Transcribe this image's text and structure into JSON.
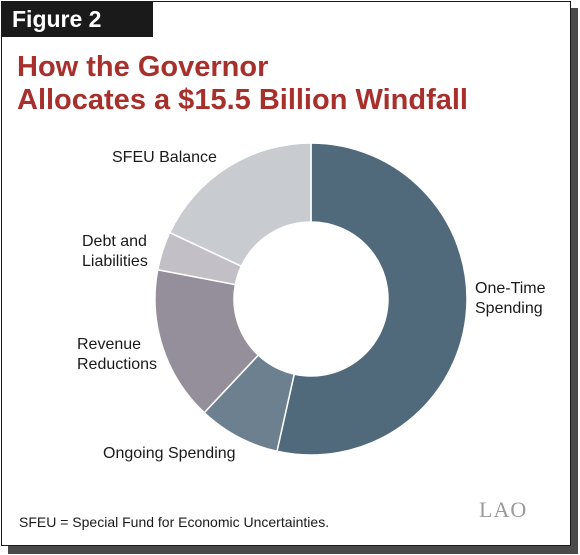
{
  "figure_label": "Figure 2",
  "title_line1": "How the Governor",
  "title_line2": "Allocates a $15.5 Billion Windfall",
  "footnote": "SFEU = Special Fund for Economic Uncertainties.",
  "logo_text": "LAO",
  "chart_data": {
    "type": "pie",
    "subtype": "donut",
    "title": "How the Governor Allocates a $15.5 Billion Windfall",
    "total": 15.5,
    "series": [
      {
        "name": "One-Time Spending",
        "label_lines": [
          "One-Time",
          "Spending"
        ],
        "value": 53.5,
        "color": "#516a7b"
      },
      {
        "name": "Ongoing Spending",
        "label_lines": [
          "Ongoing Spending"
        ],
        "value": 8.5,
        "color": "#6d8090"
      },
      {
        "name": "Revenue Reductions",
        "label_lines": [
          "Revenue",
          "Reductions"
        ],
        "value": 16.0,
        "color": "#958f9b"
      },
      {
        "name": "Debt and Liabilities",
        "label_lines": [
          "Debt and",
          "Liabilities"
        ],
        "value": 4.0,
        "color": "#c3bfc6"
      },
      {
        "name": "SFEU Balance",
        "label_lines": [
          "SFEU Balance"
        ],
        "value": 18.0,
        "color": "#c8ccd1"
      }
    ]
  }
}
